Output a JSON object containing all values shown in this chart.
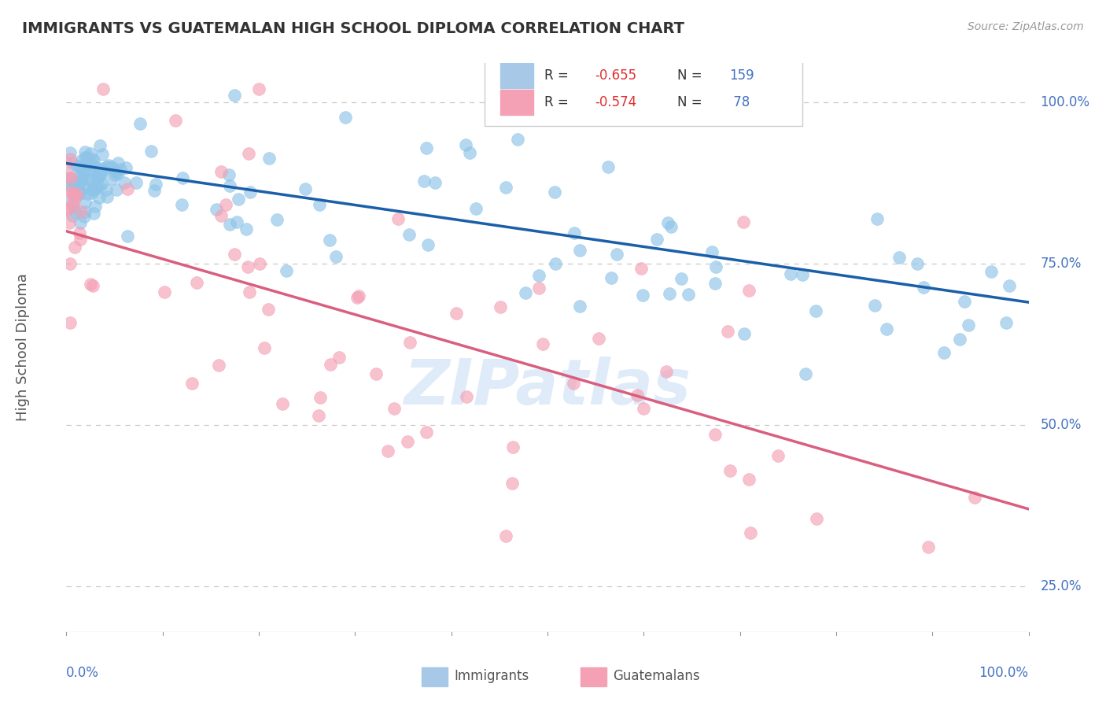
{
  "title": "IMMIGRANTS VS GUATEMALAN HIGH SCHOOL DIPLOMA CORRELATION CHART",
  "source": "Source: ZipAtlas.com",
  "ylabel": "High School Diploma",
  "watermark": "ZIPatlas",
  "blue_R": -0.655,
  "blue_N": 159,
  "pink_R": -0.574,
  "pink_N": 78,
  "xlim": [
    0.0,
    1.0
  ],
  "ylim": [
    0.18,
    1.06
  ],
  "yticks": [
    0.25,
    0.5,
    0.75,
    1.0
  ],
  "ytick_labels": [
    "25.0%",
    "50.0%",
    "75.0%",
    "100.0%"
  ],
  "blue_color": "#8ec4e8",
  "pink_color": "#f4a0b5",
  "blue_line_color": "#1a5fa8",
  "pink_line_color": "#d95f7f",
  "title_color": "#333333",
  "axis_label_color": "#4472c4",
  "grid_color": "#c8c8c8",
  "background_color": "#ffffff",
  "blue_intercept": 0.905,
  "blue_slope": -0.215,
  "pink_intercept": 0.8,
  "pink_slope": -0.43,
  "blue_scatter_seed": 42,
  "pink_scatter_seed": 7
}
